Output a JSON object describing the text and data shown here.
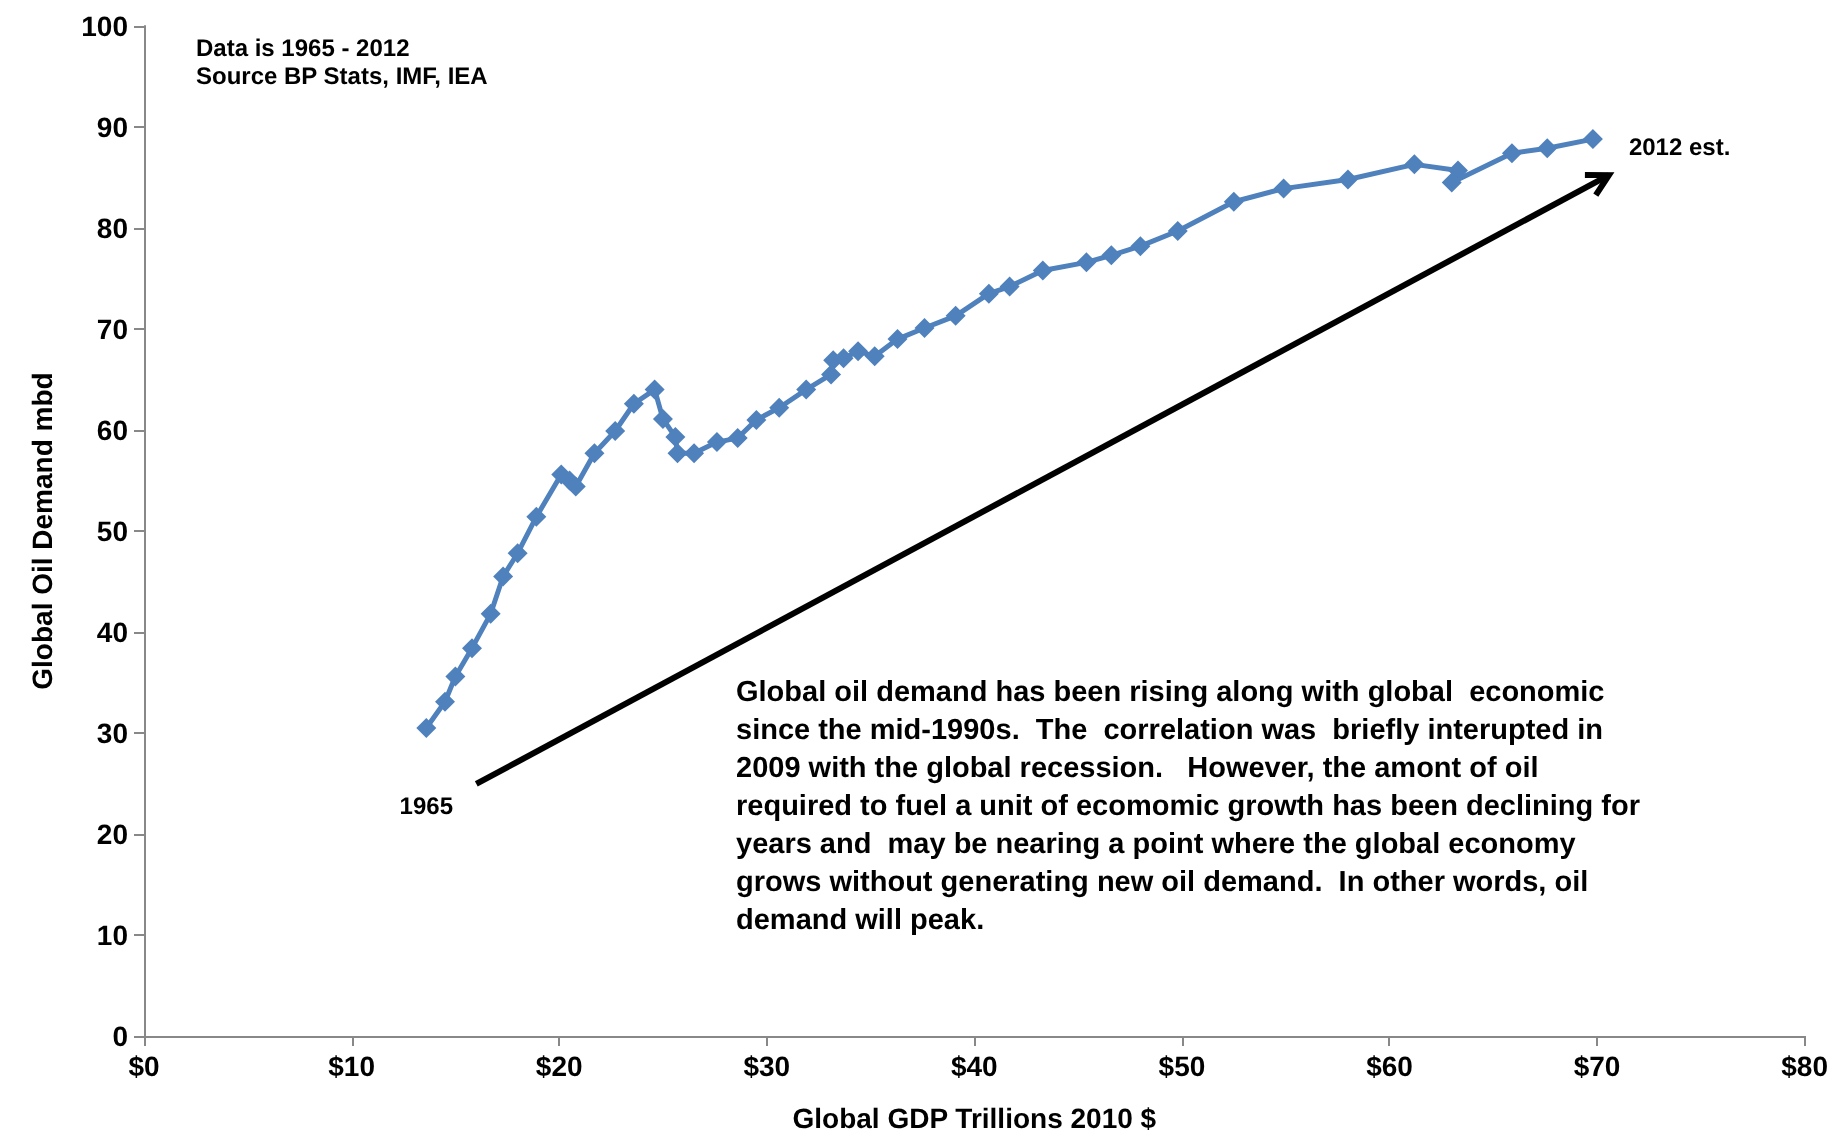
{
  "chart_data": {
    "type": "line",
    "xlabel": "Global GDP Trillions 2010 $",
    "ylabel": "Global Oil Demand mbd",
    "xlim": [
      0,
      80
    ],
    "xticks": [
      {
        "value": 0,
        "label": "$0"
      },
      {
        "value": 10,
        "label": "$10"
      },
      {
        "value": 20,
        "label": "$20"
      },
      {
        "value": 30,
        "label": "$30"
      },
      {
        "value": 40,
        "label": "$40"
      },
      {
        "value": 50,
        "label": "$50"
      },
      {
        "value": 60,
        "label": "$60"
      },
      {
        "value": 70,
        "label": "$70"
      },
      {
        "value": 80,
        "label": "$80"
      }
    ],
    "ylim": [
      0,
      100
    ],
    "yticks": [
      0,
      10,
      20,
      30,
      40,
      50,
      60,
      70,
      80,
      90,
      100
    ],
    "grid": false,
    "marker": "diamond",
    "line_style": "solid",
    "series": [
      {
        "color": "#4f81bd",
        "x": [
          13.6,
          14.5,
          15.0,
          15.8,
          16.7,
          17.3,
          18.0,
          18.9,
          20.1,
          20.5,
          20.8,
          21.7,
          22.7,
          23.6,
          24.6,
          25.0,
          25.6,
          25.7,
          26.5,
          27.6,
          28.6,
          29.5,
          30.6,
          31.9,
          33.1,
          33.2,
          33.7,
          34.4,
          35.2,
          36.3,
          37.6,
          39.1,
          40.7,
          41.7,
          43.3,
          45.4,
          46.6,
          48.0,
          49.8,
          52.5,
          54.9,
          58.0,
          61.2,
          63.3,
          63.0,
          65.9,
          67.6,
          69.8
        ],
        "values": [
          30.5,
          33.1,
          35.6,
          38.4,
          41.8,
          45.5,
          47.8,
          51.4,
          55.6,
          55.0,
          54.4,
          57.7,
          59.9,
          62.6,
          64.0,
          61.1,
          59.3,
          57.7,
          57.7,
          58.8,
          59.2,
          61.0,
          62.2,
          64.0,
          65.5,
          66.9,
          67.1,
          67.8,
          67.3,
          69.0,
          70.1,
          71.3,
          73.5,
          74.2,
          75.8,
          76.6,
          77.3,
          78.2,
          79.7,
          82.6,
          83.9,
          84.8,
          86.3,
          85.7,
          84.5,
          87.4,
          87.9,
          88.8
        ]
      }
    ],
    "annotations": [
      "Data is 1965 - 2012",
      "Source BP Stats, IMF, IEA",
      {
        "text": "1965",
        "x": 13.6,
        "y": 30.5
      },
      {
        "text": "2012 est.",
        "x": 69.8,
        "y": 88.8
      },
      "Global oil demand has been rising along with global  economic since the mid-1990s.  The  correlation was  briefly interupted in 2009 with the global recession.   However, the amont of oil required to fuel a unit of ecomomic growth has been declining for years and  may be nearing a point where the global economy grows without generating new oil demand.  In other words, oil demand will peak."
    ]
  }
}
